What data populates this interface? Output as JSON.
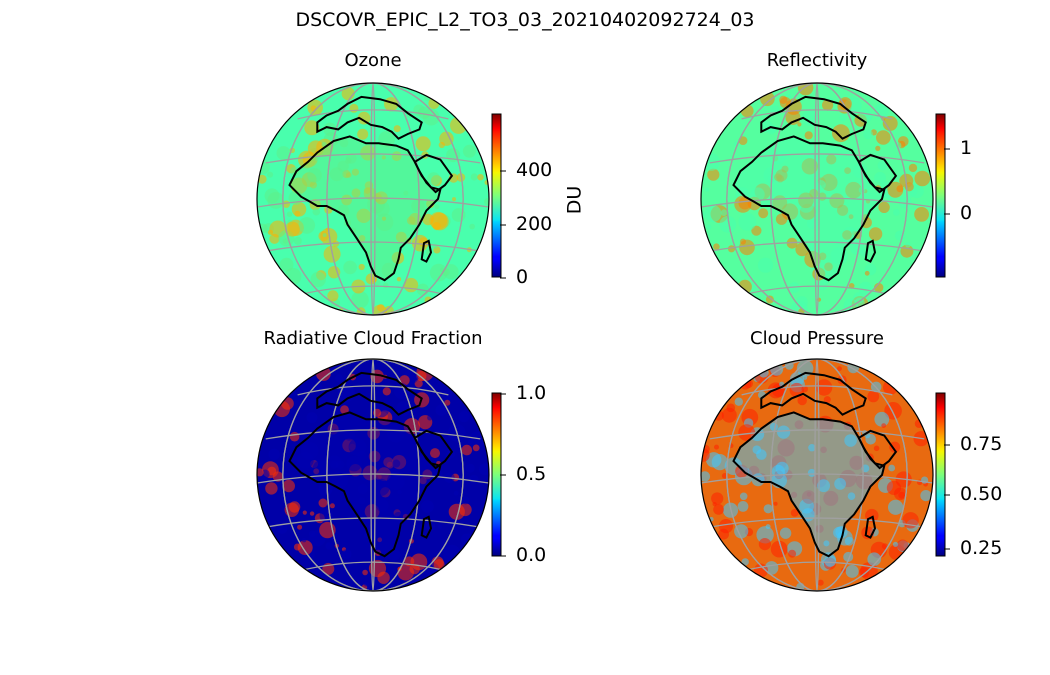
{
  "figure": {
    "title": "DSCOVR_EPIC_L2_TO3_03_20210402092724_03"
  },
  "colormap": "jet",
  "map": {
    "projection": "orthographic",
    "coastline_color": "#000000",
    "gridline_color": "#a0a0a0"
  },
  "panels": [
    {
      "title": "Ozone",
      "colorbar": {
        "label": "DU",
        "ticks": [
          "0",
          "200",
          "400"
        ]
      },
      "dominant_color": "#5cf08a",
      "highlight_color": "#ffb000",
      "background_color": "#49ffad"
    },
    {
      "title": "Reflectivity",
      "colorbar": {
        "label": "",
        "ticks": [
          "0",
          "1"
        ]
      },
      "dominant_color": "#49ffad",
      "highlight_color": "#ff8000",
      "background_color": "#55ff9f"
    },
    {
      "title": "Radiative Cloud Fraction",
      "colorbar": {
        "label": "",
        "ticks": [
          "0.0",
          "0.5",
          "1.0"
        ]
      },
      "dominant_color": "#0000b0",
      "highlight_color": "#ff3000",
      "background_color": "#0000a8"
    },
    {
      "title": "Cloud Pressure",
      "colorbar": {
        "label": "",
        "ticks": [
          "0.25",
          "0.50",
          "0.75"
        ]
      },
      "dominant_color": "#40c8ff",
      "highlight_color": "#ff2000",
      "background_color": "#e86a10"
    }
  ]
}
